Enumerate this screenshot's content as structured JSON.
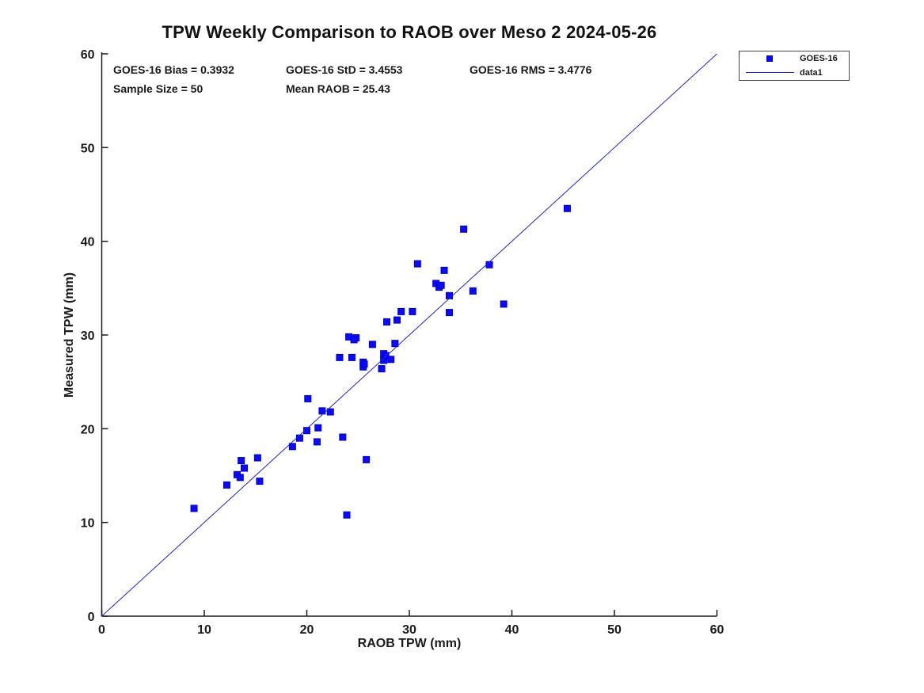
{
  "title": "TPW Weekly Comparison to RAOB over Meso 2 2024-05-26",
  "stats": {
    "bias": "GOES-16 Bias = 0.3932",
    "std": "GOES-16 StD = 3.4553",
    "rms": "GOES-16 RMS = 3.4776",
    "sample_size": "Sample Size = 50",
    "mean_raob": "Mean RAOB = 25.43"
  },
  "legend": {
    "entries": [
      {
        "label": "GOES-16",
        "type": "marker"
      },
      {
        "label": "data1",
        "type": "line"
      }
    ]
  },
  "colors": {
    "marker_fill": "#0a0aff",
    "marker_edge": "#0000c8",
    "line": "#2222cc",
    "axis": "#1a1a1a"
  },
  "chart_data": {
    "type": "scatter",
    "title": "TPW Weekly Comparison to RAOB over Meso 2 2024-05-26",
    "xlabel": "RAOB TPW (mm)",
    "ylabel": "Measured TPW (mm)",
    "xlim": [
      0,
      60
    ],
    "ylim": [
      0,
      60
    ],
    "xticks": [
      0,
      10,
      20,
      30,
      40,
      50,
      60
    ],
    "yticks": [
      0,
      10,
      20,
      30,
      40,
      50,
      60
    ],
    "grid": false,
    "legend_position": "outside-top-right",
    "series": [
      {
        "name": "GOES-16",
        "type": "scatter",
        "marker": "square",
        "points": [
          [
            9.0,
            11.5
          ],
          [
            12.2,
            14.0
          ],
          [
            13.2,
            15.1
          ],
          [
            13.5,
            14.8
          ],
          [
            13.6,
            16.6
          ],
          [
            13.9,
            15.8
          ],
          [
            15.2,
            16.9
          ],
          [
            15.4,
            14.4
          ],
          [
            18.6,
            18.1
          ],
          [
            19.3,
            19.0
          ],
          [
            20.0,
            19.8
          ],
          [
            21.1,
            20.1
          ],
          [
            21.0,
            18.6
          ],
          [
            23.5,
            19.1
          ],
          [
            20.1,
            23.2
          ],
          [
            21.5,
            21.9
          ],
          [
            22.3,
            21.8
          ],
          [
            23.9,
            10.8
          ],
          [
            25.8,
            16.7
          ],
          [
            23.2,
            27.6
          ],
          [
            24.4,
            27.6
          ],
          [
            24.1,
            29.8
          ],
          [
            24.8,
            29.7
          ],
          [
            24.6,
            29.5
          ],
          [
            26.4,
            29.0
          ],
          [
            25.5,
            27.1
          ],
          [
            25.5,
            26.6
          ],
          [
            25.6,
            26.9
          ],
          [
            27.3,
            26.4
          ],
          [
            27.5,
            28.0
          ],
          [
            27.5,
            27.3
          ],
          [
            27.7,
            27.8
          ],
          [
            28.2,
            27.4
          ],
          [
            28.6,
            29.1
          ],
          [
            27.8,
            31.4
          ],
          [
            28.8,
            31.6
          ],
          [
            29.2,
            32.5
          ],
          [
            30.3,
            32.5
          ],
          [
            30.8,
            37.6
          ],
          [
            32.6,
            35.5
          ],
          [
            32.9,
            35.1
          ],
          [
            33.1,
            35.3
          ],
          [
            33.4,
            36.9
          ],
          [
            33.9,
            34.2
          ],
          [
            33.9,
            32.4
          ],
          [
            35.3,
            41.3
          ],
          [
            36.2,
            34.7
          ],
          [
            37.8,
            37.5
          ],
          [
            39.2,
            33.3
          ],
          [
            45.4,
            43.5
          ]
        ]
      },
      {
        "name": "data1",
        "type": "line",
        "points": [
          [
            0,
            0
          ],
          [
            60,
            60
          ]
        ]
      }
    ]
  }
}
